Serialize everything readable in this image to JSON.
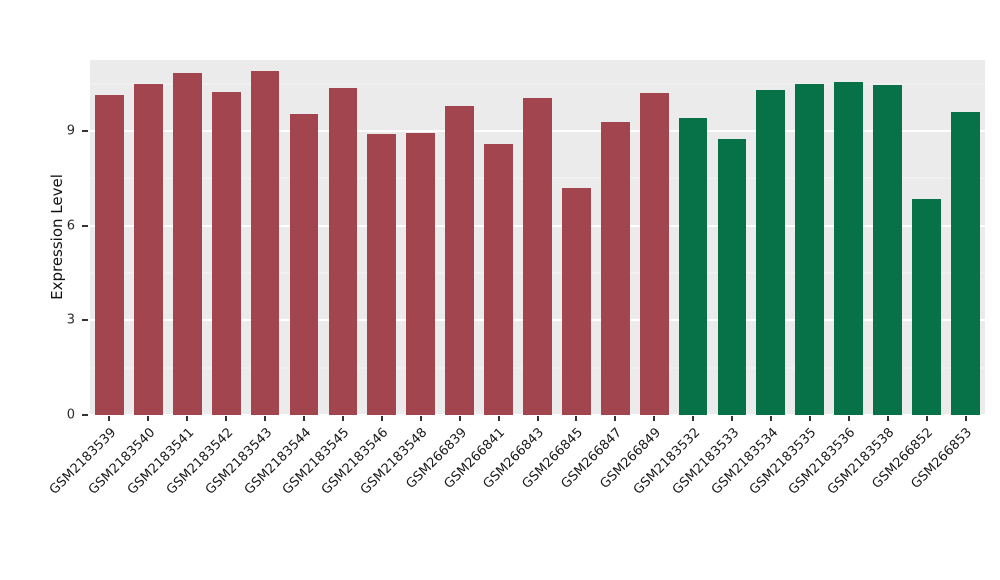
{
  "chart_data": {
    "type": "bar",
    "title": "",
    "xlabel": "",
    "ylabel": "Expression Level",
    "ylim": [
      0,
      11.25
    ],
    "yticks": [
      0,
      3,
      6,
      9
    ],
    "minor_gridlines": [
      1.5,
      4.5,
      7.5,
      10.5
    ],
    "grid": "on",
    "legend_position": "none",
    "panel_bg": "#EBEBEB",
    "grid_color": "#FFFFFF",
    "categories": [
      "GSM2183539",
      "GSM2183540",
      "GSM2183541",
      "GSM2183542",
      "GSM2183543",
      "GSM2183544",
      "GSM2183545",
      "GSM2183546",
      "GSM2183548",
      "GSM266839",
      "GSM266841",
      "GSM266843",
      "GSM266845",
      "GSM266847",
      "GSM266849",
      "GSM2183532",
      "GSM2183533",
      "GSM2183534",
      "GSM2183535",
      "GSM2183536",
      "GSM2183538",
      "GSM266852",
      "GSM266853"
    ],
    "values": [
      10.15,
      10.5,
      10.85,
      10.25,
      10.9,
      9.55,
      10.35,
      8.9,
      8.95,
      9.8,
      8.6,
      10.05,
      7.2,
      9.3,
      10.2,
      9.4,
      8.75,
      10.3,
      10.5,
      10.55,
      10.45,
      6.85,
      9.6
    ],
    "groups": [
      "group1",
      "group1",
      "group1",
      "group1",
      "group1",
      "group1",
      "group1",
      "group1",
      "group1",
      "group1",
      "group1",
      "group1",
      "group1",
      "group1",
      "group1",
      "group2",
      "group2",
      "group2",
      "group2",
      "group2",
      "group2",
      "group2",
      "group2"
    ],
    "colors": {
      "group1": "#A3454F",
      "group2": "#077147"
    }
  }
}
